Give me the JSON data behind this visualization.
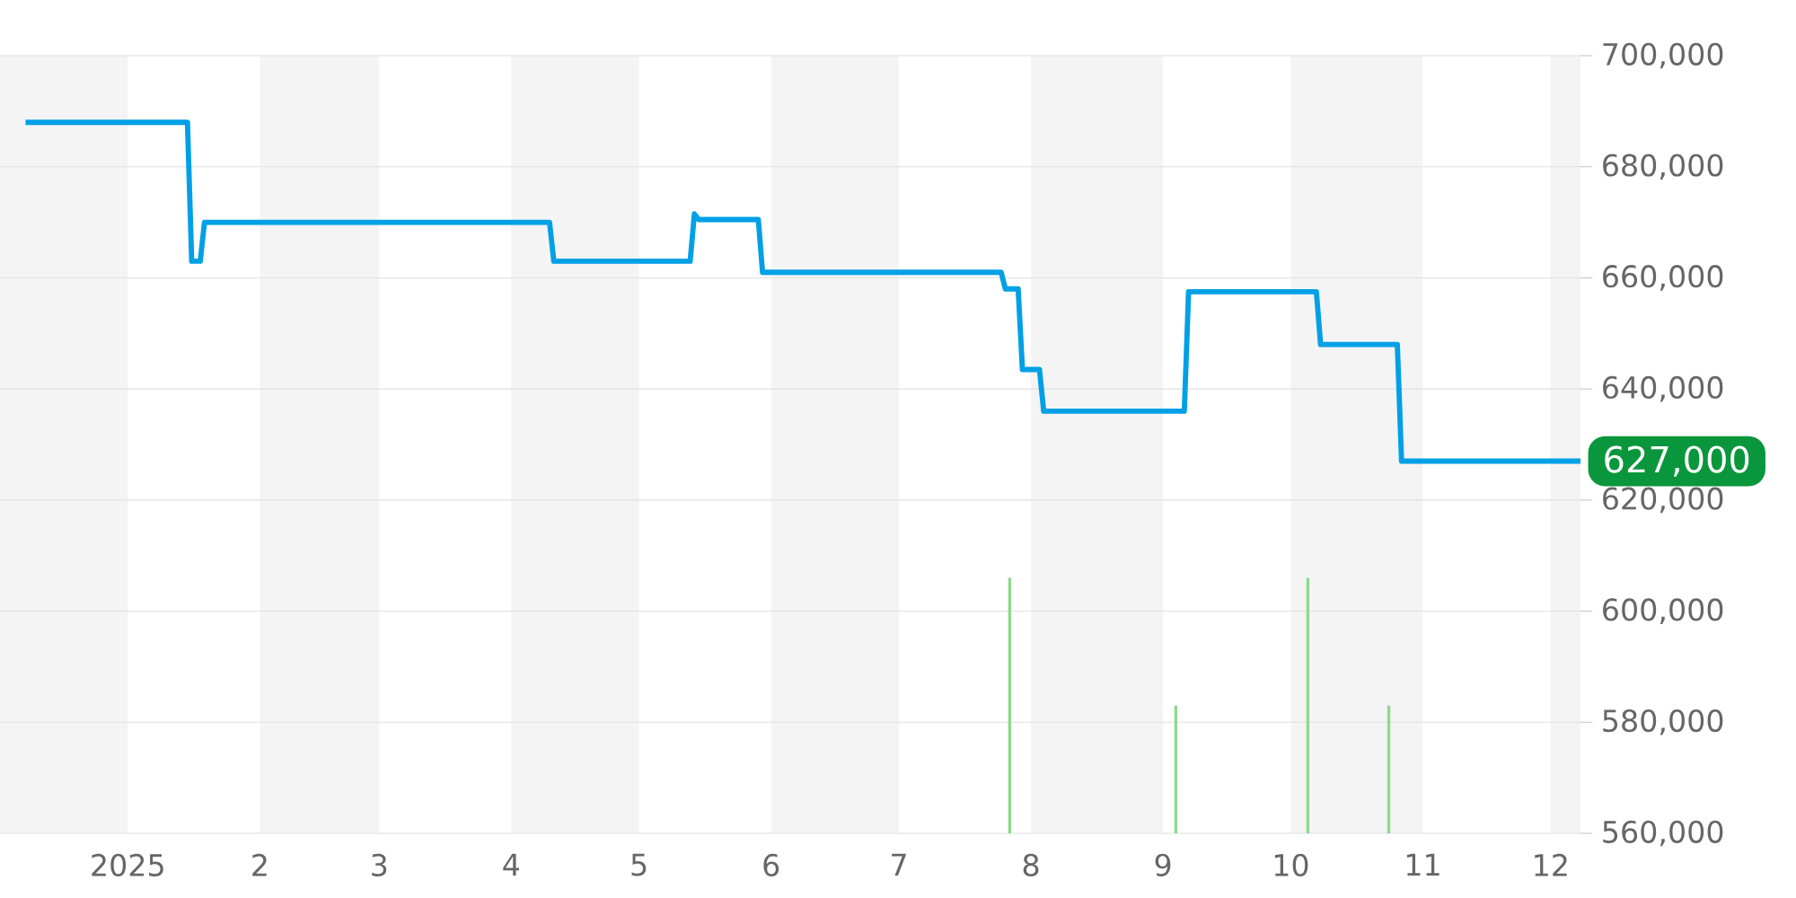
{
  "chart_data": {
    "type": "line",
    "xlim": [
      "2024-12-02",
      "2025-12-08"
    ],
    "xticks": [
      {
        "value": "2025-01-01",
        "label": "2025"
      },
      {
        "value": "2025-02-01",
        "label": "2"
      },
      {
        "value": "2025-03-01",
        "label": "3"
      },
      {
        "value": "2025-04-01",
        "label": "4"
      },
      {
        "value": "2025-05-01",
        "label": "5"
      },
      {
        "value": "2025-06-01",
        "label": "6"
      },
      {
        "value": "2025-07-01",
        "label": "7"
      },
      {
        "value": "2025-08-01",
        "label": "8"
      },
      {
        "value": "2025-09-01",
        "label": "9"
      },
      {
        "value": "2025-10-01",
        "label": "10"
      },
      {
        "value": "2025-11-01",
        "label": "11"
      },
      {
        "value": "2025-12-01",
        "label": "12"
      }
    ],
    "ylim": [
      560000,
      700000
    ],
    "yticks": [
      {
        "value": 560000,
        "label": "560,000"
      },
      {
        "value": 580000,
        "label": "580,000"
      },
      {
        "value": 600000,
        "label": "600,000"
      },
      {
        "value": 620000,
        "label": "620,000"
      },
      {
        "value": 640000,
        "label": "640,000"
      },
      {
        "value": 660000,
        "label": "660,000"
      },
      {
        "value": 680000,
        "label": "680,000"
      },
      {
        "value": 700000,
        "label": "700,000"
      }
    ],
    "grid": "y",
    "series": [
      {
        "color": "#00a0e6",
        "x": [
          "2024-12-08",
          "2025-01-15",
          "2025-01-16",
          "2025-01-18",
          "2025-01-19",
          "2025-04-10",
          "2025-04-11",
          "2025-05-13",
          "2025-05-14",
          "2025-05-15",
          "2025-05-29",
          "2025-05-30",
          "2025-07-25",
          "2025-07-26",
          "2025-07-29",
          "2025-07-30",
          "2025-08-03",
          "2025-08-04",
          "2025-09-06",
          "2025-09-07",
          "2025-10-07",
          "2025-10-08",
          "2025-10-26",
          "2025-10-27",
          "2025-12-08"
        ],
        "values": [
          688000,
          688000,
          663000,
          663000,
          670000,
          670000,
          663000,
          663000,
          671500,
          670500,
          670500,
          661000,
          661000,
          658000,
          658000,
          643500,
          643500,
          636000,
          636000,
          657500,
          657500,
          648000,
          648000,
          627000,
          627000
        ]
      },
      {
        "type": "bar",
        "color": "#8fd88f",
        "x": [
          "2025-07-27",
          "2025-09-04",
          "2025-10-05",
          "2025-10-24"
        ],
        "values": [
          606000,
          583000,
          606000,
          583000
        ]
      }
    ],
    "bands": [
      {
        "axis": "x",
        "from": "2024-12-02",
        "to": "2025-01-01",
        "color": "#f4f4f4"
      },
      {
        "axis": "x",
        "from": "2025-02-01",
        "to": "2025-03-01",
        "color": "#f4f4f4"
      },
      {
        "axis": "x",
        "from": "2025-04-01",
        "to": "2025-05-01",
        "color": "#f4f4f4"
      },
      {
        "axis": "x",
        "from": "2025-06-01",
        "to": "2025-07-01",
        "color": "#f4f4f4"
      },
      {
        "axis": "x",
        "from": "2025-08-01",
        "to": "2025-09-01",
        "color": "#f4f4f4"
      },
      {
        "axis": "x",
        "from": "2025-10-01",
        "to": "2025-11-01",
        "color": "#f4f4f4"
      },
      {
        "axis": "x",
        "from": "2025-12-01",
        "to": "2025-12-08",
        "color": "#f4f4f4"
      }
    ],
    "annotations": [
      {
        "text": "627,000",
        "x": "2025-12-08",
        "y": 627000
      }
    ]
  }
}
